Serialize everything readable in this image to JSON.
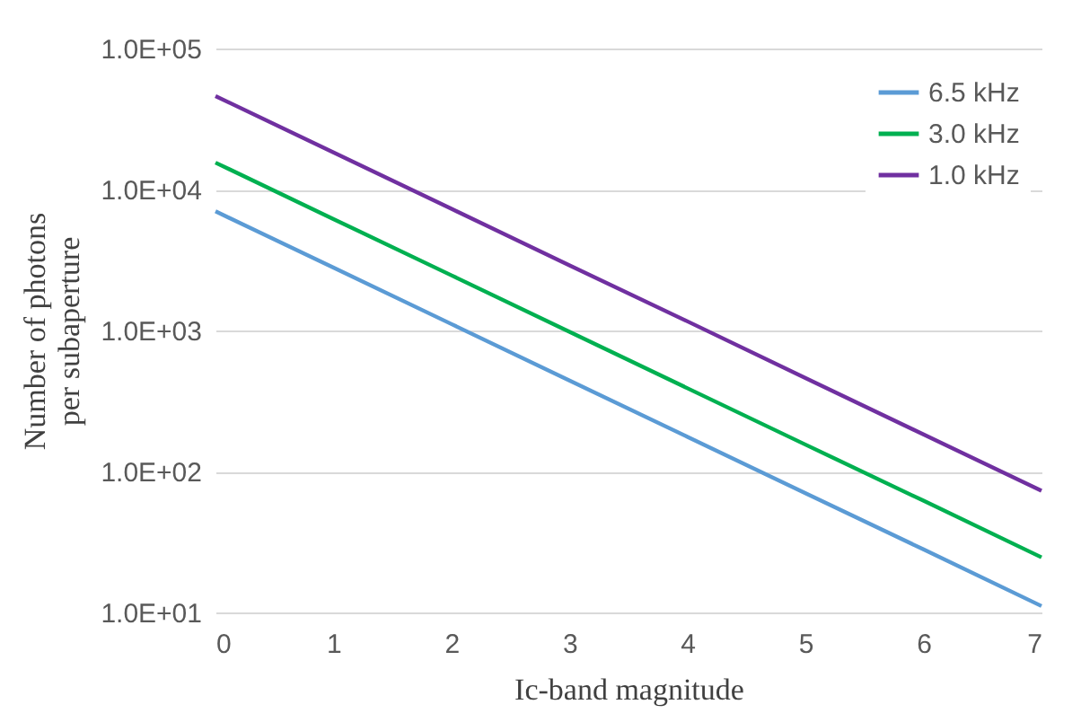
{
  "chart_data": {
    "type": "line",
    "xlabel": "Ic-band magnitude",
    "ylabel": "Number of photons per subaperture",
    "x": [
      0,
      1,
      2,
      3,
      4,
      5,
      6,
      7
    ],
    "series": [
      {
        "name": "6.5 kHz",
        "color": "#5b9bd5",
        "values": [
          7000,
          2790,
          1110,
          442,
          176,
          70,
          28,
          11.1
        ]
      },
      {
        "name": "3.0 kHz",
        "color": "#00b050",
        "values": [
          15500,
          6170,
          2460,
          978,
          389,
          155,
          62,
          24.6
        ]
      },
      {
        "name": "1.0 kHz",
        "color": "#7030a0",
        "values": [
          46000,
          18300,
          7290,
          2900,
          1160,
          460,
          183,
          73
        ]
      }
    ],
    "xlim": [
      0,
      7
    ],
    "xticks": [
      0,
      1,
      2,
      3,
      4,
      5,
      6,
      7
    ],
    "ylim": [
      10,
      100000
    ],
    "yticks": [
      {
        "value": 10,
        "label": "1.0E+01"
      },
      {
        "value": 100,
        "label": "1.0E+02"
      },
      {
        "value": 1000,
        "label": "1.0E+03"
      },
      {
        "value": 10000,
        "label": "1.0E+04"
      },
      {
        "value": 100000,
        "label": "1.0E+05"
      }
    ],
    "log": "y",
    "grid": "y",
    "legend": "top right",
    "marker": "none",
    "line_style": "solid"
  }
}
